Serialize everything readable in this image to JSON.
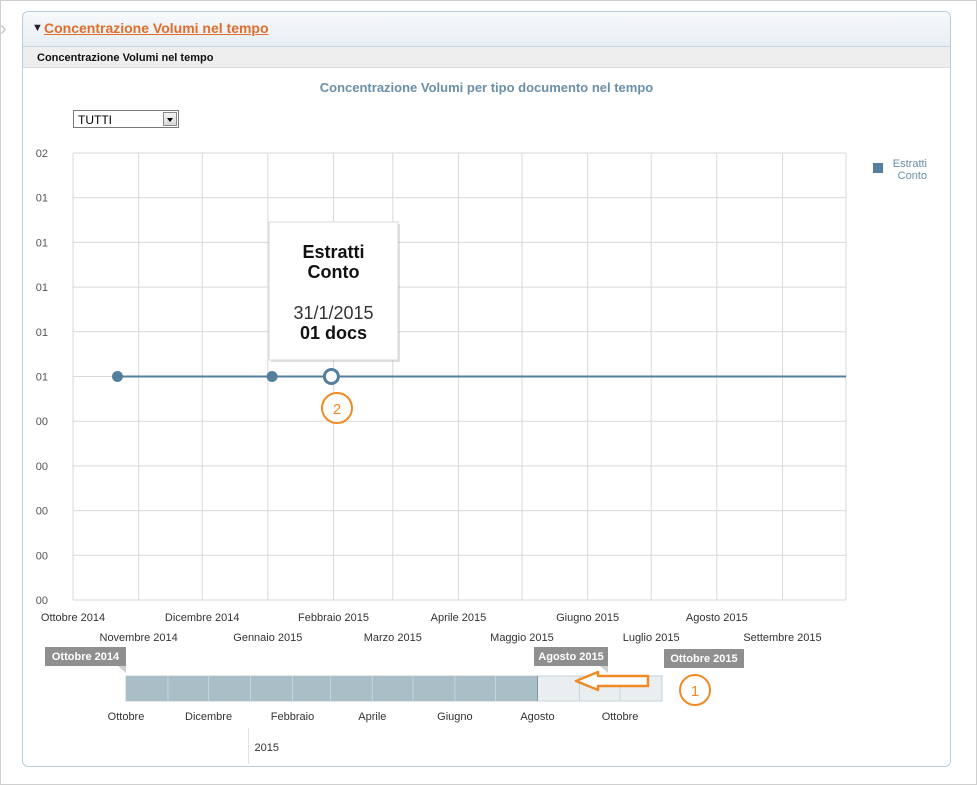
{
  "panel": {
    "title": "Concentrazione Volumi nel tempo",
    "subtitle": "Concentrazione Volumi nel tempo"
  },
  "filter": {
    "selected": "TUTTI"
  },
  "chart_data": {
    "type": "line",
    "title": "Concentrazione Volumi per tipo documento nel tempo",
    "y_tick_labels": [
      "02",
      "01",
      "01",
      "01",
      "01",
      "01",
      "00",
      "00",
      "00",
      "00",
      "00"
    ],
    "x_months": [
      "Ottobre 2014",
      "Novembre 2014",
      "Dicembre 2014",
      "Gennaio 2015",
      "Febbraio 2015",
      "Marzo 2015",
      "Aprile 2015",
      "Maggio 2015",
      "Giugno 2015",
      "Luglio 2015",
      "Agosto 2015",
      "Settembre 2015"
    ],
    "x_range": [
      "2014-10-01",
      "2015-10-01"
    ],
    "ylim": [
      0,
      2
    ],
    "series": [
      {
        "name": "Estratti Conto",
        "color": "#557f9c",
        "points": [
          {
            "date": "2014-10-22",
            "value": 1
          },
          {
            "date": "2015-01-03",
            "value": 1
          },
          {
            "date": "2015-01-31",
            "value": 1
          },
          {
            "date": "2015-10-01",
            "value": 1
          }
        ]
      }
    ],
    "legend": {
      "position": "right",
      "label_line1": "Estratti",
      "label_line2": "Conto"
    },
    "tooltip": {
      "series_line1": "Estratti",
      "series_line2": "Conto",
      "date": "31/1/2015",
      "value_text": "01 docs",
      "point_date": "2015-01-31"
    },
    "navigator": {
      "range_start_label": "Ottobre 2014",
      "range_end_label": "Agosto 2015",
      "max_label": "Ottobre 2015",
      "selected_range": [
        "2014-10-01",
        "2015-08-01"
      ],
      "full_range": [
        "2014-10-01",
        "2015-11-01"
      ],
      "ticks": [
        "Ottobre",
        "Dicembre",
        "Febbraio",
        "Aprile",
        "Giugno",
        "Agosto",
        "Ottobre"
      ],
      "year_label": "2015"
    },
    "grid": true
  },
  "annotations": [
    {
      "number": "1",
      "color": "#f08a24"
    },
    {
      "number": "2",
      "color": "#f08a24"
    }
  ]
}
